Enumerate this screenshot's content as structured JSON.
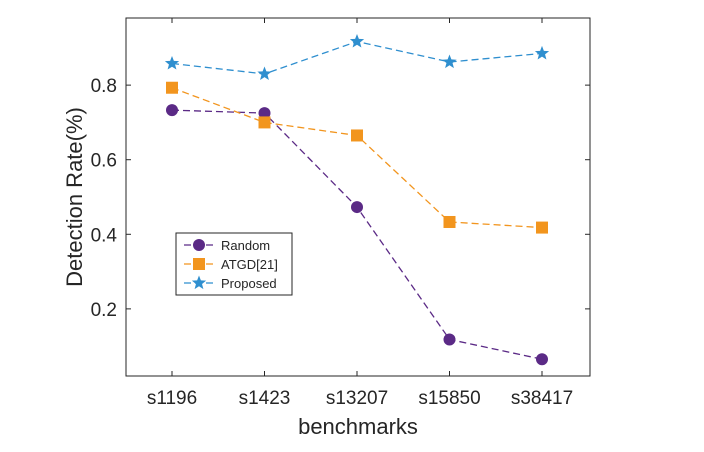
{
  "chart_data": {
    "type": "line",
    "categories": [
      "s1196",
      "s1423",
      "s13207",
      "s15850",
      "s38417"
    ],
    "xlabel": "benchmarks",
    "ylabel": "Detection Rate(%)",
    "ylim": [
      0.02,
      0.98
    ],
    "yticks": [
      "0.2",
      "0.4",
      "0.6",
      "0.8"
    ],
    "grid": false,
    "legend_position": "lower-left",
    "series": [
      {
        "name": "Random",
        "values": [
          0.733,
          0.725,
          0.473,
          0.118,
          0.065
        ],
        "color": "#5b2a86",
        "marker": "circle"
      },
      {
        "name": "ATGD[21]",
        "values": [
          0.793,
          0.7,
          0.665,
          0.433,
          0.418
        ],
        "color": "#f2951e",
        "marker": "square"
      },
      {
        "name": "Proposed",
        "values": [
          0.858,
          0.83,
          0.917,
          0.862,
          0.885
        ],
        "color": "#2f8fcf",
        "marker": "star"
      }
    ]
  }
}
